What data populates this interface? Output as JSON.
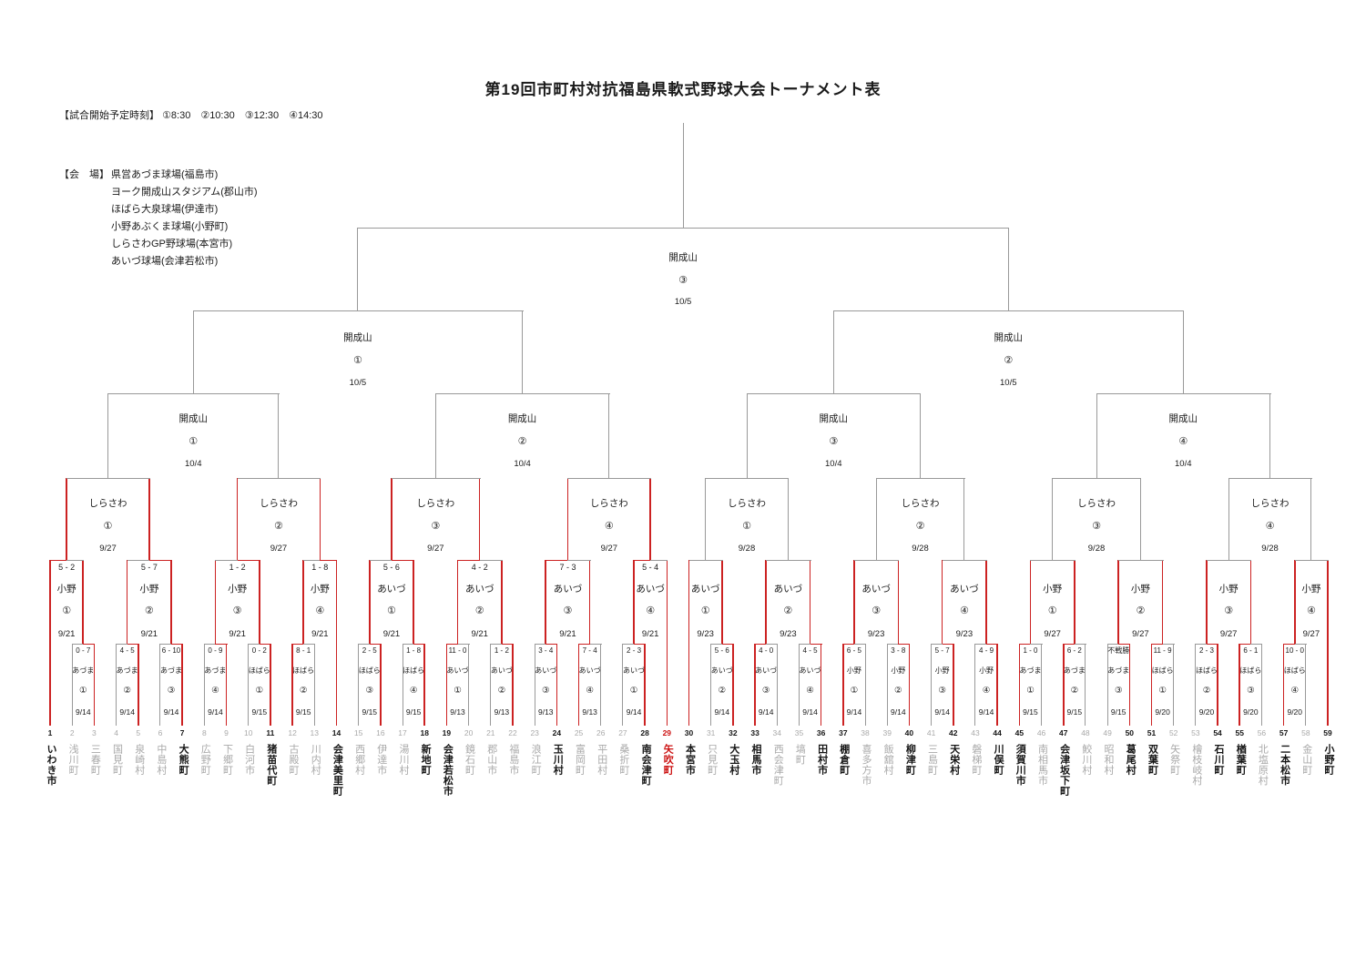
{
  "title": "第19回市町村対抗福島県軟式野球大会トーナメント表",
  "schedule": {
    "label": "【試合開始予定時刻】",
    "times": "①8:30　②10:30　③12:30　④14:30"
  },
  "venues_section": {
    "label": "【会　場】",
    "venues": [
      "県営あづま球場(福島市)",
      "ヨーク開成山スタジアム(郡山市)",
      "ほばら大泉球場(伊達市)",
      "小野あぶくま球場(小野町)",
      "しらさわGP野球場(本宮市)",
      "あいづ球場(会津若松市)"
    ]
  },
  "colors": {
    "red": "#cc2222",
    "gray": "#999999",
    "eliminated_text": "#a9a9a9",
    "alive_text": "#151515",
    "highlight_text": "#cc1111"
  },
  "teams": [
    {
      "name": "いわき市",
      "st": "w"
    },
    {
      "name": "浅川町",
      "st": "l"
    },
    {
      "name": "三春町",
      "st": "l"
    },
    {
      "name": "国見町",
      "st": "l"
    },
    {
      "name": "泉崎村",
      "st": "l"
    },
    {
      "name": "中島村",
      "st": "l"
    },
    {
      "name": "大熊町",
      "st": "w"
    },
    {
      "name": "広野町",
      "st": "l"
    },
    {
      "name": "下郷町",
      "st": "l"
    },
    {
      "name": "白河市",
      "st": "l"
    },
    {
      "name": "猪苗代町",
      "st": "w"
    },
    {
      "name": "古殿町",
      "st": "l"
    },
    {
      "name": "川内村",
      "st": "l"
    },
    {
      "name": "会津美里町",
      "st": "w"
    },
    {
      "name": "西郷村",
      "st": "l"
    },
    {
      "name": "伊達市",
      "st": "l"
    },
    {
      "name": "湯川村",
      "st": "l"
    },
    {
      "name": "新地町",
      "st": "w"
    },
    {
      "name": "会津若松市",
      "st": "w"
    },
    {
      "name": "鏡石町",
      "st": "l"
    },
    {
      "name": "郡山市",
      "st": "l"
    },
    {
      "name": "福島市",
      "st": "l"
    },
    {
      "name": "浪江町",
      "st": "l"
    },
    {
      "name": "玉川村",
      "st": "w"
    },
    {
      "name": "富岡町",
      "st": "l"
    },
    {
      "name": "平田村",
      "st": "l"
    },
    {
      "name": "桑折町",
      "st": "l"
    },
    {
      "name": "南会津町",
      "st": "w"
    },
    {
      "name": "矢吹町",
      "st": "hl"
    },
    {
      "name": "本宮市",
      "st": "w"
    },
    {
      "name": "只見町",
      "st": "l"
    },
    {
      "name": "大玉村",
      "st": "w"
    },
    {
      "name": "相馬市",
      "st": "w"
    },
    {
      "name": "西会津町",
      "st": "l"
    },
    {
      "name": "塙町",
      "st": "l"
    },
    {
      "name": "田村市",
      "st": "w"
    },
    {
      "name": "棚倉町",
      "st": "w"
    },
    {
      "name": "喜多方市",
      "st": "l"
    },
    {
      "name": "飯舘村",
      "st": "l"
    },
    {
      "name": "柳津町",
      "st": "w"
    },
    {
      "name": "三島町",
      "st": "l"
    },
    {
      "name": "天栄村",
      "st": "w"
    },
    {
      "name": "磐梯町",
      "st": "l"
    },
    {
      "name": "川俣町",
      "st": "w"
    },
    {
      "name": "須賀川市",
      "st": "w"
    },
    {
      "name": "南相馬市",
      "st": "l"
    },
    {
      "name": "会津坂下町",
      "st": "w"
    },
    {
      "name": "鮫川村",
      "st": "l"
    },
    {
      "name": "昭和村",
      "st": "l"
    },
    {
      "name": "葛尾村",
      "st": "w"
    },
    {
      "name": "双葉町",
      "st": "w"
    },
    {
      "name": "矢祭町",
      "st": "l"
    },
    {
      "name": "檜枝岐村",
      "st": "l"
    },
    {
      "name": "石川町",
      "st": "w"
    },
    {
      "name": "楢葉町",
      "st": "w"
    },
    {
      "name": "北塩原村",
      "st": "l"
    },
    {
      "name": "二本松市",
      "st": "w"
    },
    {
      "name": "金山町",
      "st": "l"
    },
    {
      "name": "小野町",
      "st": "w"
    }
  ],
  "rounds": {
    "r1": [
      {
        "l": 2,
        "r": 3,
        "score": "0 - 7",
        "venue": "あづま",
        "no": "①",
        "date": "9/14",
        "win": "R"
      },
      {
        "l": 4,
        "r": 5,
        "score": "4 - 5",
        "venue": "あづま",
        "no": "②",
        "date": "9/14",
        "win": "R"
      },
      {
        "l": 6,
        "r": 7,
        "score": "6 - 10",
        "venue": "あづま",
        "no": "③",
        "date": "9/14",
        "win": "R"
      },
      {
        "l": 8,
        "r": 9,
        "score": "0 - 9",
        "venue": "あづま",
        "no": "④",
        "date": "9/14",
        "win": "R"
      },
      {
        "l": 10,
        "r": 11,
        "score": "0 - 2",
        "venue": "ほばら",
        "no": "①",
        "date": "9/15",
        "win": "R"
      },
      {
        "l": 12,
        "r": 13,
        "score": "8 - 1",
        "venue": "ほばら",
        "no": "②",
        "date": "9/15",
        "win": "L"
      },
      {
        "l": 15,
        "r": 16,
        "score": "2 - 5",
        "venue": "ほばら",
        "no": "③",
        "date": "9/15",
        "win": "R"
      },
      {
        "l": 17,
        "r": 18,
        "score": "1 - 8",
        "venue": "ほばら",
        "no": "④",
        "date": "9/15",
        "win": "R"
      },
      {
        "l": 19,
        "r": 20,
        "score": "11 - 0",
        "venue": "あいづ",
        "no": "①",
        "date": "9/13",
        "win": "L"
      },
      {
        "l": 21,
        "r": 22,
        "score": "1 - 2",
        "venue": "あいづ",
        "no": "②",
        "date": "9/13",
        "win": "R"
      },
      {
        "l": 23,
        "r": 24,
        "score": "3 - 4",
        "venue": "あいづ",
        "no": "③",
        "date": "9/13",
        "win": "R"
      },
      {
        "l": 25,
        "r": 26,
        "score": "7 - 4",
        "venue": "あいづ",
        "no": "④",
        "date": "9/13",
        "win": "L"
      },
      {
        "l": 27,
        "r": 28,
        "score": "2 - 3",
        "venue": "あいづ",
        "no": "①",
        "date": "9/14",
        "win": "R"
      },
      {
        "l": 31,
        "r": 32,
        "score": "5 - 6",
        "venue": "あいづ",
        "no": "②",
        "date": "9/14",
        "win": "R"
      },
      {
        "l": 33,
        "r": 34,
        "score": "4 - 0",
        "venue": "あいづ",
        "no": "③",
        "date": "9/14",
        "win": "L"
      },
      {
        "l": 35,
        "r": 36,
        "score": "4 - 5",
        "venue": "あいづ",
        "no": "④",
        "date": "9/14",
        "win": "R"
      },
      {
        "l": 37,
        "r": 38,
        "score": "6 - 5",
        "venue": "小野",
        "no": "①",
        "date": "9/14",
        "win": "L"
      },
      {
        "l": 39,
        "r": 40,
        "score": "3 - 8",
        "venue": "小野",
        "no": "②",
        "date": "9/14",
        "win": "R"
      },
      {
        "l": 41,
        "r": 42,
        "score": "5 - 7",
        "venue": "小野",
        "no": "③",
        "date": "9/14",
        "win": "R"
      },
      {
        "l": 43,
        "r": 44,
        "score": "4 - 9",
        "venue": "小野",
        "no": "④",
        "date": "9/14",
        "win": "R"
      },
      {
        "l": 45,
        "r": 46,
        "score": "1 - 0",
        "venue": "あづま",
        "no": "①",
        "date": "9/15",
        "win": "L"
      },
      {
        "l": 47,
        "r": 48,
        "score": "6 - 2",
        "venue": "あづま",
        "no": "②",
        "date": "9/15",
        "win": "L"
      },
      {
        "l": 49,
        "r": 50,
        "score": "不戦勝",
        "venue": "あづま",
        "no": "③",
        "date": "9/15",
        "win": "R"
      },
      {
        "l": 51,
        "r": 52,
        "score": "11 - 9",
        "venue": "ほばら",
        "no": "①",
        "date": "9/20",
        "win": "L"
      },
      {
        "l": 53,
        "r": 54,
        "score": "2 - 3",
        "venue": "ほばら",
        "no": "②",
        "date": "9/20",
        "win": "R"
      },
      {
        "l": 55,
        "r": 56,
        "score": "6 - 1",
        "venue": "ほばら",
        "no": "③",
        "date": "9/20",
        "win": "L"
      },
      {
        "l": 57,
        "r": 58,
        "score": "10 - 0",
        "venue": "ほばら",
        "no": "④",
        "date": "9/20",
        "win": "L"
      }
    ],
    "r2": [
      {
        "l": {
          "t": 1
        },
        "r": {
          "m": 0
        },
        "score": "5 - 2",
        "venue": "小野",
        "no": "①",
        "date": "9/21",
        "win": "L"
      },
      {
        "l": {
          "m": 1
        },
        "r": {
          "m": 2
        },
        "score": "5 - 7",
        "venue": "小野",
        "no": "②",
        "date": "9/21",
        "win": "R"
      },
      {
        "l": {
          "m": 3
        },
        "r": {
          "m": 4
        },
        "score": "1 - 2",
        "venue": "小野",
        "no": "③",
        "date": "9/21",
        "win": "R"
      },
      {
        "l": {
          "m": 5
        },
        "r": {
          "t": 14
        },
        "score": "1 - 8",
        "venue": "小野",
        "no": "④",
        "date": "9/21",
        "win": "R"
      },
      {
        "l": {
          "m": 6
        },
        "r": {
          "m": 7
        },
        "score": "5 - 6",
        "venue": "あいづ",
        "no": "①",
        "date": "9/21",
        "win": "R"
      },
      {
        "l": {
          "m": 8
        },
        "r": {
          "m": 9
        },
        "score": "4 - 2",
        "venue": "あいづ",
        "no": "②",
        "date": "9/21",
        "win": "L"
      },
      {
        "l": {
          "m": 10
        },
        "r": {
          "m": 11
        },
        "score": "7 - 3",
        "venue": "あいづ",
        "no": "③",
        "date": "9/21",
        "win": "L"
      },
      {
        "l": {
          "m": 12
        },
        "r": {
          "t": 29
        },
        "score": "5 - 4",
        "venue": "あいづ",
        "no": "④",
        "date": "9/21",
        "win": "L"
      },
      {
        "l": {
          "t": 30
        },
        "r": {
          "m": 13
        },
        "score": null,
        "venue": "あいづ",
        "no": "①",
        "date": "9/23",
        "win": null
      },
      {
        "l": {
          "m": 14
        },
        "r": {
          "m": 15
        },
        "score": null,
        "venue": "あいづ",
        "no": "②",
        "date": "9/23",
        "win": null
      },
      {
        "l": {
          "m": 16
        },
        "r": {
          "m": 17
        },
        "score": null,
        "venue": "あいづ",
        "no": "③",
        "date": "9/23",
        "win": null
      },
      {
        "l": {
          "m": 18
        },
        "r": {
          "m": 19
        },
        "score": null,
        "venue": "あいづ",
        "no": "④",
        "date": "9/23",
        "win": null
      },
      {
        "l": {
          "m": 20
        },
        "r": {
          "m": 21
        },
        "score": null,
        "venue": "小野",
        "no": "①",
        "date": "9/27",
        "win": null
      },
      {
        "l": {
          "m": 22
        },
        "r": {
          "m": 23
        },
        "score": null,
        "venue": "小野",
        "no": "②",
        "date": "9/27",
        "win": null
      },
      {
        "l": {
          "m": 24
        },
        "r": {
          "m": 25
        },
        "score": null,
        "venue": "小野",
        "no": "③",
        "date": "9/27",
        "win": null
      },
      {
        "l": {
          "m": 26
        },
        "r": {
          "t": 59
        },
        "score": null,
        "venue": "小野",
        "no": "④",
        "date": "9/27",
        "win": null
      }
    ],
    "r3": [
      {
        "l": 0,
        "r": 1,
        "venue": "しらさわ",
        "no": "①",
        "date": "9/27",
        "red": true
      },
      {
        "l": 2,
        "r": 3,
        "venue": "しらさわ",
        "no": "②",
        "date": "9/27",
        "red": true
      },
      {
        "l": 4,
        "r": 5,
        "venue": "しらさわ",
        "no": "③",
        "date": "9/27",
        "red": true
      },
      {
        "l": 6,
        "r": 7,
        "venue": "しらさわ",
        "no": "④",
        "date": "9/27",
        "red": true
      },
      {
        "l": 8,
        "r": 9,
        "venue": "しらさわ",
        "no": "①",
        "date": "9/28",
        "red": false
      },
      {
        "l": 10,
        "r": 11,
        "venue": "しらさわ",
        "no": "②",
        "date": "9/28",
        "red": false
      },
      {
        "l": 12,
        "r": 13,
        "venue": "しらさわ",
        "no": "③",
        "date": "9/28",
        "red": false
      },
      {
        "l": 14,
        "r": 15,
        "venue": "しらさわ",
        "no": "④",
        "date": "9/28",
        "red": false
      }
    ],
    "qf": [
      {
        "l": 0,
        "r": 1,
        "venue": "開成山",
        "no": "①",
        "date": "10/4"
      },
      {
        "l": 2,
        "r": 3,
        "venue": "開成山",
        "no": "②",
        "date": "10/4"
      },
      {
        "l": 4,
        "r": 5,
        "venue": "開成山",
        "no": "③",
        "date": "10/4"
      },
      {
        "l": 6,
        "r": 7,
        "venue": "開成山",
        "no": "④",
        "date": "10/4"
      }
    ],
    "sf": [
      {
        "l": 0,
        "r": 1,
        "venue": "開成山",
        "no": "①",
        "date": "10/5"
      },
      {
        "l": 2,
        "r": 3,
        "venue": "開成山",
        "no": "②",
        "date": "10/5"
      }
    ],
    "f": {
      "l": 0,
      "r": 1,
      "venue": "開成山",
      "no": "③",
      "date": "10/5"
    }
  }
}
